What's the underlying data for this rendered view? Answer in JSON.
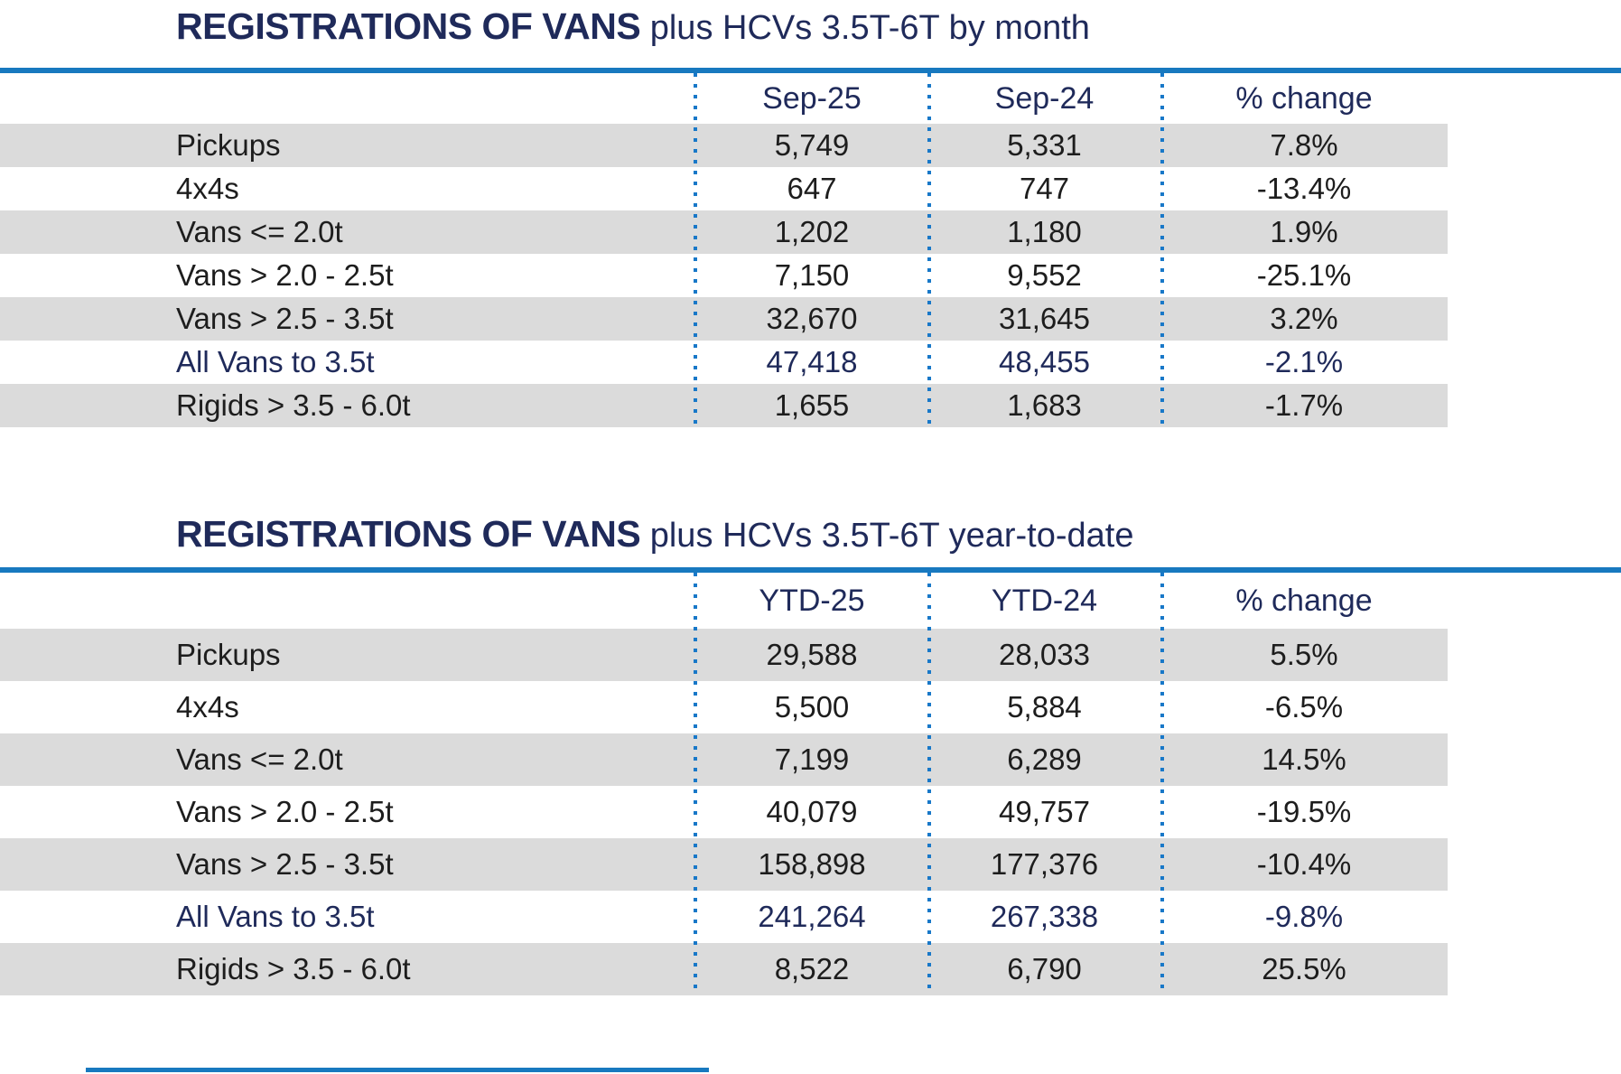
{
  "colors": {
    "navy": "#1f2a5a",
    "blue": "#1879bf",
    "blue2": "#1878c8",
    "band": "#dbdbdb",
    "ink": "#1d1d1d"
  },
  "tables": [
    {
      "title_bold": "REGISTRATIONS OF VANS",
      "title_rest": "plus HCVs 3.5T-6T by month",
      "columns": [
        "Sep-25",
        "Sep-24",
        "% change"
      ],
      "rows": [
        {
          "label": "Pickups",
          "v1": "5,749",
          "v2": "5,331",
          "pct": "7.8%"
        },
        {
          "label": "4x4s",
          "v1": "647",
          "v2": "747",
          "pct": "-13.4%"
        },
        {
          "label": "Vans <= 2.0t",
          "v1": "1,202",
          "v2": "1,180",
          "pct": "1.9%"
        },
        {
          "label": "Vans > 2.0 - 2.5t",
          "v1": "7,150",
          "v2": "9,552",
          "pct": "-25.1%"
        },
        {
          "label": "Vans > 2.5 - 3.5t",
          "v1": "32,670",
          "v2": "31,645",
          "pct": "3.2%"
        },
        {
          "label": "All Vans to 3.5t",
          "v1": "47,418",
          "v2": "48,455",
          "pct": "-2.1%"
        },
        {
          "label": "Rigids > 3.5 - 6.0t",
          "v1": "1,655",
          "v2": "1,683",
          "pct": "-1.7%"
        }
      ]
    },
    {
      "title_bold": "REGISTRATIONS OF VANS",
      "title_rest": "plus HCVs 3.5T-6T year-to-date",
      "columns": [
        "YTD-25",
        "YTD-24",
        "% change"
      ],
      "rows": [
        {
          "label": "Pickups",
          "v1": "29,588",
          "v2": "28,033",
          "pct": "5.5%"
        },
        {
          "label": "4x4s",
          "v1": "5,500",
          "v2": "5,884",
          "pct": "-6.5%"
        },
        {
          "label": "Vans <= 2.0t",
          "v1": "7,199",
          "v2": "6,289",
          "pct": "14.5%"
        },
        {
          "label": "Vans > 2.0 - 2.5t",
          "v1": "40,079",
          "v2": "49,757",
          "pct": "-19.5%"
        },
        {
          "label": "Vans > 2.5 - 3.5t",
          "v1": "158,898",
          "v2": "177,376",
          "pct": "-10.4%"
        },
        {
          "label": "All Vans to 3.5t",
          "v1": "241,264",
          "v2": "267,338",
          "pct": "-9.8%"
        },
        {
          "label": "Rigids > 3.5 - 6.0t",
          "v1": "8,522",
          "v2": "6,790",
          "pct": "25.5%"
        }
      ]
    }
  ]
}
